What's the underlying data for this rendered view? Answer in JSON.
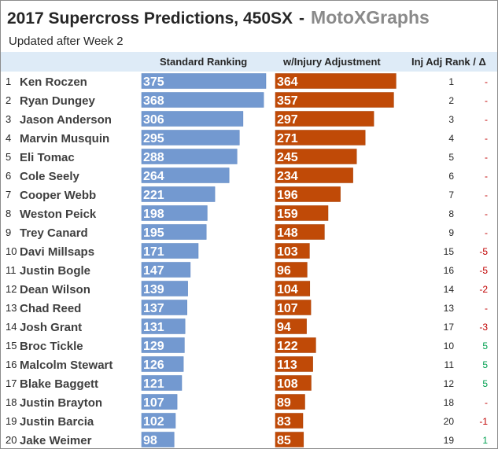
{
  "title": "2017 Supercross Predictions, 450SX",
  "title_separator": "-",
  "brand": "MotoXGraphs",
  "subtitle": "Updated after Week 2",
  "columns": {
    "standard": "Standard Ranking",
    "injury": "w/Injury Adjustment",
    "rank_delta": "Inj Adj Rank / Δ"
  },
  "colors": {
    "standard_bar": "#7399d0",
    "injury_bar": "#c04a07",
    "header_band": "#deebf7",
    "delta_negative": "#c00000",
    "delta_positive": "#00a050",
    "delta_none": "#c00000"
  },
  "chart_data": {
    "type": "bar",
    "orientation": "horizontal",
    "title": "2017 Supercross Predictions, 450SX",
    "categories": [
      "Ken Roczen",
      "Ryan Dungey",
      "Jason Anderson",
      "Marvin Musquin",
      "Eli Tomac",
      "Cole Seely",
      "Cooper Webb",
      "Weston Peick",
      "Trey Canard",
      "Davi Millsaps",
      "Justin Bogle",
      "Dean Wilson",
      "Chad Reed",
      "Josh Grant",
      "Broc Tickle",
      "Malcolm Stewart",
      "Blake Baggett",
      "Justin Brayton",
      "Justin Barcia",
      "Jake Weimer"
    ],
    "ranks": [
      1,
      2,
      3,
      4,
      5,
      6,
      7,
      8,
      9,
      10,
      11,
      12,
      13,
      14,
      15,
      16,
      17,
      18,
      19,
      20
    ],
    "series": [
      {
        "name": "Standard Ranking",
        "values": [
          375,
          368,
          306,
          295,
          288,
          264,
          221,
          198,
          195,
          171,
          147,
          139,
          137,
          131,
          129,
          126,
          121,
          107,
          102,
          98
        ]
      },
      {
        "name": "w/Injury Adjustment",
        "values": [
          364,
          357,
          297,
          271,
          245,
          234,
          196,
          159,
          148,
          103,
          96,
          104,
          107,
          94,
          122,
          113,
          108,
          89,
          83,
          85
        ]
      }
    ],
    "inj_adj_rank": [
      1,
      2,
      3,
      4,
      5,
      6,
      7,
      8,
      9,
      15,
      16,
      14,
      13,
      17,
      10,
      11,
      12,
      18,
      20,
      19
    ],
    "rank_delta": [
      "-",
      "-",
      "-",
      "-",
      "-",
      "-",
      "-",
      "-",
      "-",
      "-5",
      "-5",
      "-2",
      "-",
      "-3",
      "5",
      "5",
      "5",
      "-",
      "-1",
      "1"
    ],
    "xlim": [
      0,
      375
    ]
  }
}
